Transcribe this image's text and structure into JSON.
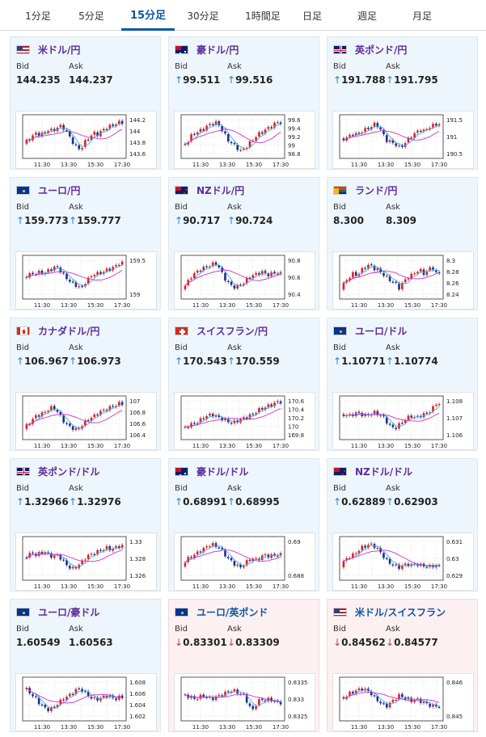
{
  "tabs": [
    {
      "label": "1分足",
      "active": false
    },
    {
      "label": "5分足",
      "active": false
    },
    {
      "label": "15分足",
      "active": true
    },
    {
      "label": "30分足",
      "active": false
    },
    {
      "label": "1時間足",
      "active": false
    },
    {
      "label": "日足",
      "active": false
    },
    {
      "label": "週足",
      "active": false
    },
    {
      "label": "月足",
      "active": false
    }
  ],
  "labels": {
    "bid": "Bid",
    "ask": "Ask"
  },
  "colors": {
    "up_arrow": "#2b7bd0",
    "down_arrow": "#d23c3c",
    "candle_up": "#e02020",
    "candle_down": "#1c2f8c",
    "ma_short": "#3fb0e8",
    "ma_long": "#cc33cc"
  },
  "cards": [
    {
      "name": "米ドル/円",
      "flag": "us-jp",
      "bid": "144.235",
      "ask": "144.237",
      "trend": "none",
      "chart_data": {
        "type": "candlestick",
        "x_ticks": [
          "11:30",
          "13:30",
          "15:30",
          "17:30"
        ],
        "y_ticks": [
          "144.2",
          "144",
          "143.8",
          "143.6"
        ],
        "shape": [
          0.3,
          0.4,
          0.5,
          0.6,
          0.55,
          0.6,
          0.7,
          0.65,
          0.75,
          0.8,
          0.7,
          0.5,
          0.3,
          0.15,
          0.2,
          0.4,
          0.5,
          0.6,
          0.55,
          0.7,
          0.75,
          0.8,
          0.85,
          0.9
        ],
        "ma": "wave"
      }
    },
    {
      "name": "豪ドル/円",
      "flag": "au-jp",
      "bid": "99.511",
      "ask": "99.516",
      "trend": "up",
      "chart_data": {
        "type": "candlestick",
        "x_ticks": [
          "11:30",
          "13:30",
          "15:30",
          "17:30"
        ],
        "y_ticks": [
          "99.6",
          "99.4",
          "99.2",
          "99",
          "98.8"
        ],
        "shape": [
          0.25,
          0.3,
          0.5,
          0.6,
          0.65,
          0.7,
          0.8,
          0.85,
          0.9,
          0.8,
          0.6,
          0.4,
          0.3,
          0.2,
          0.1,
          0.15,
          0.3,
          0.4,
          0.55,
          0.6,
          0.7,
          0.75,
          0.85,
          0.9
        ],
        "ma": "wave"
      }
    },
    {
      "name": "英ポンド/円",
      "flag": "gb-jp",
      "bid": "191.788",
      "ask": "191.795",
      "trend": "up",
      "chart_data": {
        "type": "candlestick",
        "x_ticks": [
          "11:30",
          "13:30",
          "15:30",
          "17:30"
        ],
        "y_ticks": [
          "191.5",
          "191",
          "190.5"
        ],
        "shape": [
          0.4,
          0.45,
          0.5,
          0.6,
          0.55,
          0.65,
          0.7,
          0.75,
          0.85,
          0.8,
          0.6,
          0.4,
          0.35,
          0.3,
          0.2,
          0.25,
          0.4,
          0.5,
          0.6,
          0.7,
          0.65,
          0.75,
          0.8,
          0.85
        ],
        "ma": "wave"
      }
    },
    {
      "name": "ユーロ/円",
      "flag": "eu-jp",
      "bid": "159.773",
      "ask": "159.777",
      "trend": "up",
      "chart_data": {
        "type": "candlestick",
        "x_ticks": [
          "11:30",
          "13:30",
          "15:30",
          "17:30"
        ],
        "y_ticks": [
          "159.5",
          "159"
        ],
        "shape": [
          0.5,
          0.55,
          0.6,
          0.6,
          0.65,
          0.6,
          0.7,
          0.75,
          0.8,
          0.65,
          0.5,
          0.4,
          0.3,
          0.25,
          0.2,
          0.4,
          0.5,
          0.6,
          0.6,
          0.65,
          0.7,
          0.75,
          0.8,
          0.9
        ],
        "ma": "wave"
      }
    },
    {
      "name": "NZドル/円",
      "flag": "nz-jp",
      "bid": "90.717",
      "ask": "90.724",
      "trend": "up",
      "chart_data": {
        "type": "candlestick",
        "x_ticks": [
          "11:30",
          "13:30",
          "15:30",
          "17:30"
        ],
        "y_ticks": [
          "90.8",
          "90.6",
          "90.4"
        ],
        "shape": [
          0.2,
          0.3,
          0.5,
          0.6,
          0.7,
          0.75,
          0.8,
          0.85,
          0.9,
          0.75,
          0.5,
          0.35,
          0.25,
          0.2,
          0.3,
          0.35,
          0.5,
          0.55,
          0.6,
          0.65,
          0.6,
          0.55,
          0.65,
          0.6
        ],
        "ma": "wave"
      }
    },
    {
      "name": "ランド/円",
      "flag": "za-jp",
      "bid": "8.300",
      "ask": "8.309",
      "trend": "none",
      "chart_data": {
        "type": "candlestick",
        "x_ticks": [
          "11:30",
          "13:30",
          "15:30",
          "17:30"
        ],
        "y_ticks": [
          "8.3",
          "8.28",
          "8.26",
          "8.24"
        ],
        "shape": [
          0.2,
          0.35,
          0.5,
          0.6,
          0.55,
          0.7,
          0.8,
          0.85,
          0.75,
          0.7,
          0.6,
          0.5,
          0.4,
          0.35,
          0.2,
          0.35,
          0.5,
          0.55,
          0.65,
          0.7,
          0.6,
          0.7,
          0.8,
          0.6
        ],
        "ma": "wave"
      }
    },
    {
      "name": "カナダドル/円",
      "flag": "ca-jp",
      "bid": "106.967",
      "ask": "106.973",
      "trend": "up",
      "chart_data": {
        "type": "candlestick",
        "x_ticks": [
          "11:30",
          "13:30",
          "15:30",
          "17:30"
        ],
        "y_ticks": [
          "107",
          "106.8",
          "106.6",
          "106.4"
        ],
        "shape": [
          0.2,
          0.3,
          0.45,
          0.55,
          0.6,
          0.65,
          0.75,
          0.8,
          0.7,
          0.5,
          0.35,
          0.25,
          0.2,
          0.15,
          0.3,
          0.4,
          0.5,
          0.55,
          0.65,
          0.7,
          0.75,
          0.8,
          0.85,
          0.9
        ],
        "ma": "wave"
      }
    },
    {
      "name": "スイスフラン/円",
      "flag": "ch-jp",
      "bid": "170.543",
      "ask": "170.559",
      "trend": "up",
      "chart_data": {
        "type": "candlestick",
        "x_ticks": [
          "11:30",
          "13:30",
          "15:30",
          "17:30"
        ],
        "y_ticks": [
          "170.6",
          "170.4",
          "170.2",
          "170",
          "169.8"
        ],
        "shape": [
          0.2,
          0.25,
          0.3,
          0.35,
          0.4,
          0.5,
          0.55,
          0.6,
          0.55,
          0.5,
          0.45,
          0.4,
          0.35,
          0.4,
          0.45,
          0.5,
          0.55,
          0.6,
          0.7,
          0.75,
          0.8,
          0.85,
          0.9,
          0.95
        ],
        "ma": "rise"
      }
    },
    {
      "name": "ユーロ/ドル",
      "flag": "eu-us",
      "bid": "1.10771",
      "ask": "1.10774",
      "trend": "up",
      "chart_data": {
        "type": "candlestick",
        "x_ticks": [
          "11:30",
          "13:30",
          "15:30",
          "17:30"
        ],
        "y_ticks": [
          "1.108",
          "1.107",
          "1.106"
        ],
        "shape": [
          0.55,
          0.6,
          0.55,
          0.6,
          0.65,
          0.6,
          0.55,
          0.6,
          0.65,
          0.6,
          0.55,
          0.4,
          0.25,
          0.2,
          0.3,
          0.4,
          0.5,
          0.55,
          0.5,
          0.55,
          0.6,
          0.65,
          0.75,
          0.9
        ],
        "ma": "flat"
      }
    },
    {
      "name": "英ポンド/ドル",
      "flag": "gb-us",
      "bid": "1.32966",
      "ask": "1.32976",
      "trend": "up",
      "chart_data": {
        "type": "candlestick",
        "x_ticks": [
          "11:30",
          "13:30",
          "15:30",
          "17:30"
        ],
        "y_ticks": [
          "1.33",
          "1.328",
          "1.326"
        ],
        "shape": [
          0.5,
          0.6,
          0.65,
          0.6,
          0.65,
          0.7,
          0.6,
          0.55,
          0.6,
          0.5,
          0.35,
          0.25,
          0.2,
          0.3,
          0.4,
          0.55,
          0.6,
          0.65,
          0.7,
          0.75,
          0.8,
          0.75,
          0.8,
          0.85
        ],
        "ma": "flat"
      }
    },
    {
      "name": "豪ドル/ドル",
      "flag": "au-us",
      "bid": "0.68991",
      "ask": "0.68995",
      "trend": "up",
      "chart_data": {
        "type": "candlestick",
        "x_ticks": [
          "11:30",
          "13:30",
          "15:30",
          "17:30"
        ],
        "y_ticks": [
          "0.69",
          "0.688"
        ],
        "shape": [
          0.3,
          0.45,
          0.55,
          0.6,
          0.7,
          0.75,
          0.85,
          0.9,
          0.85,
          0.8,
          0.65,
          0.5,
          0.4,
          0.3,
          0.25,
          0.35,
          0.45,
          0.5,
          0.45,
          0.55,
          0.6,
          0.55,
          0.6,
          0.6
        ],
        "ma": "wave"
      }
    },
    {
      "name": "NZドル/ドル",
      "flag": "nz-us",
      "bid": "0.62889",
      "ask": "0.62903",
      "trend": "up",
      "chart_data": {
        "type": "candlestick",
        "x_ticks": [
          "11:30",
          "13:30",
          "15:30",
          "17:30"
        ],
        "y_ticks": [
          "0.631",
          "0.63",
          "0.629"
        ],
        "shape": [
          0.3,
          0.45,
          0.55,
          0.6,
          0.7,
          0.8,
          0.85,
          0.9,
          0.85,
          0.75,
          0.6,
          0.45,
          0.35,
          0.3,
          0.25,
          0.3,
          0.35,
          0.3,
          0.35,
          0.3,
          0.3,
          0.25,
          0.3,
          0.28
        ],
        "ma": "wave"
      }
    },
    {
      "name": "ユーロ/豪ドル",
      "flag": "eu-au",
      "bid": "1.60549",
      "ask": "1.60563",
      "trend": "none",
      "chart_data": {
        "type": "candlestick",
        "x_ticks": [
          "11:30",
          "13:30",
          "15:30",
          "17:30"
        ],
        "y_ticks": [
          "1.608",
          "1.606",
          "1.604",
          "1.602"
        ],
        "shape": [
          0.8,
          0.75,
          0.6,
          0.5,
          0.35,
          0.25,
          0.2,
          0.25,
          0.35,
          0.45,
          0.55,
          0.6,
          0.7,
          0.8,
          0.75,
          0.65,
          0.55,
          0.5,
          0.5,
          0.55,
          0.6,
          0.55,
          0.5,
          0.55
        ],
        "ma": "fall"
      }
    },
    {
      "name": "ユーロ/英ポンド",
      "flag": "eu-gb",
      "bid": "0.83301",
      "ask": "0.83309",
      "trend": "down",
      "chart_data": {
        "type": "candlestick",
        "x_ticks": [
          "11:30",
          "13:30",
          "15:30",
          "17:30"
        ],
        "y_ticks": [
          "0.8335",
          "0.833",
          "0.8325"
        ],
        "shape": [
          0.6,
          0.6,
          0.55,
          0.5,
          0.55,
          0.6,
          0.55,
          0.5,
          0.55,
          0.6,
          0.65,
          0.7,
          0.75,
          0.7,
          0.65,
          0.6,
          0.3,
          0.2,
          0.4,
          0.5,
          0.45,
          0.5,
          0.45,
          0.4
        ],
        "ma": "flat"
      }
    },
    {
      "name": "米ドル/スイスフラン",
      "flag": "us-ch",
      "bid": "0.84562",
      "ask": "0.84577",
      "trend": "down",
      "chart_data": {
        "type": "candlestick",
        "x_ticks": [
          "11:30",
          "13:30",
          "15:30",
          "17:30"
        ],
        "y_ticks": [
          "0.846",
          "0.845"
        ],
        "shape": [
          0.5,
          0.55,
          0.65,
          0.7,
          0.75,
          0.8,
          0.75,
          0.7,
          0.55,
          0.45,
          0.35,
          0.3,
          0.4,
          0.5,
          0.6,
          0.55,
          0.5,
          0.45,
          0.5,
          0.45,
          0.4,
          0.35,
          0.3,
          0.3
        ],
        "ma": "wave"
      }
    }
  ]
}
